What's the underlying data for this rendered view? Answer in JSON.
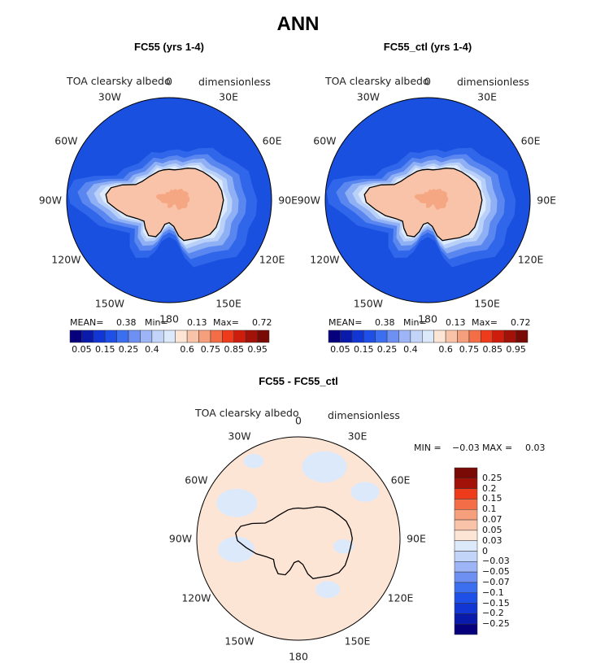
{
  "page": {
    "title": "ANN"
  },
  "common": {
    "variable": "TOA clearsky albedo",
    "units": "dimensionless",
    "lon_labels": [
      "0",
      "30E",
      "60E",
      "90E",
      "120E",
      "150E",
      "180",
      "150W",
      "120W",
      "90W",
      "60W",
      "30W"
    ]
  },
  "panels": [
    {
      "title": "FC55 (yrs 1-4)",
      "stats": {
        "mean_label": "MEAN=",
        "mean": "0.38",
        "min_label": "Min=",
        "min": "0.13",
        "max_label": "Max=",
        "max": "0.72"
      }
    },
    {
      "title": "FC55_ctl (yrs 1-4)",
      "stats": {
        "mean_label": "MEAN=",
        "mean": "0.38",
        "min_label": "Min=",
        "min": "0.13",
        "max_label": "Max=",
        "max": "0.72"
      }
    }
  ],
  "diff": {
    "title": "FC55 - FC55_ctl",
    "stats": {
      "min_label": "MIN =",
      "min": "−0.03",
      "max_label": "MAX =",
      "max": "0.03"
    }
  },
  "colorbar_abs": {
    "colors": [
      "#07007d",
      "#0a1bab",
      "#1236d4",
      "#1e4fe6",
      "#3c6ff0",
      "#6e90f3",
      "#9db5f7",
      "#c2d5f9",
      "#dce9fb",
      "#fde5d6",
      "#f8c3a8",
      "#f59f7c",
      "#f36d46",
      "#ee3b1c",
      "#cc1d0d",
      "#a21208",
      "#7a0a05"
    ],
    "labels": [
      "0.05",
      "0.15",
      "0.25",
      "0.4",
      "0.6",
      "0.75",
      "0.85",
      "0.95"
    ]
  },
  "colorbar_diff": {
    "colors": [
      "#7a0a05",
      "#a21208",
      "#ee3b1c",
      "#f36d46",
      "#f59f7c",
      "#f8c3a8",
      "#fde5d6",
      "#dce9fb",
      "#c2d5f9",
      "#9db5f7",
      "#6e90f3",
      "#3c6ff0",
      "#1e4fe6",
      "#1236d4",
      "#0a1bab",
      "#07007d"
    ],
    "labels": [
      "0.25",
      "0.2",
      "0.15",
      "0.1",
      "0.07",
      "0.05",
      "0.03",
      "0",
      "−0.03",
      "−0.05",
      "−0.07",
      "−0.1",
      "−0.15",
      "−0.2",
      "−0.25"
    ]
  },
  "map_colors": {
    "ocean_band": [
      "#1a50e0",
      "#2f66ea",
      "#5a86ef",
      "#8fb0f4",
      "#b9d0f8",
      "#dceafc"
    ],
    "land_ice": "#f8c3a8",
    "ice_plateau": "#f5a784",
    "coast": "#000000",
    "diff_pos": "#fde5d6",
    "diff_neg": "#dce9fb"
  }
}
